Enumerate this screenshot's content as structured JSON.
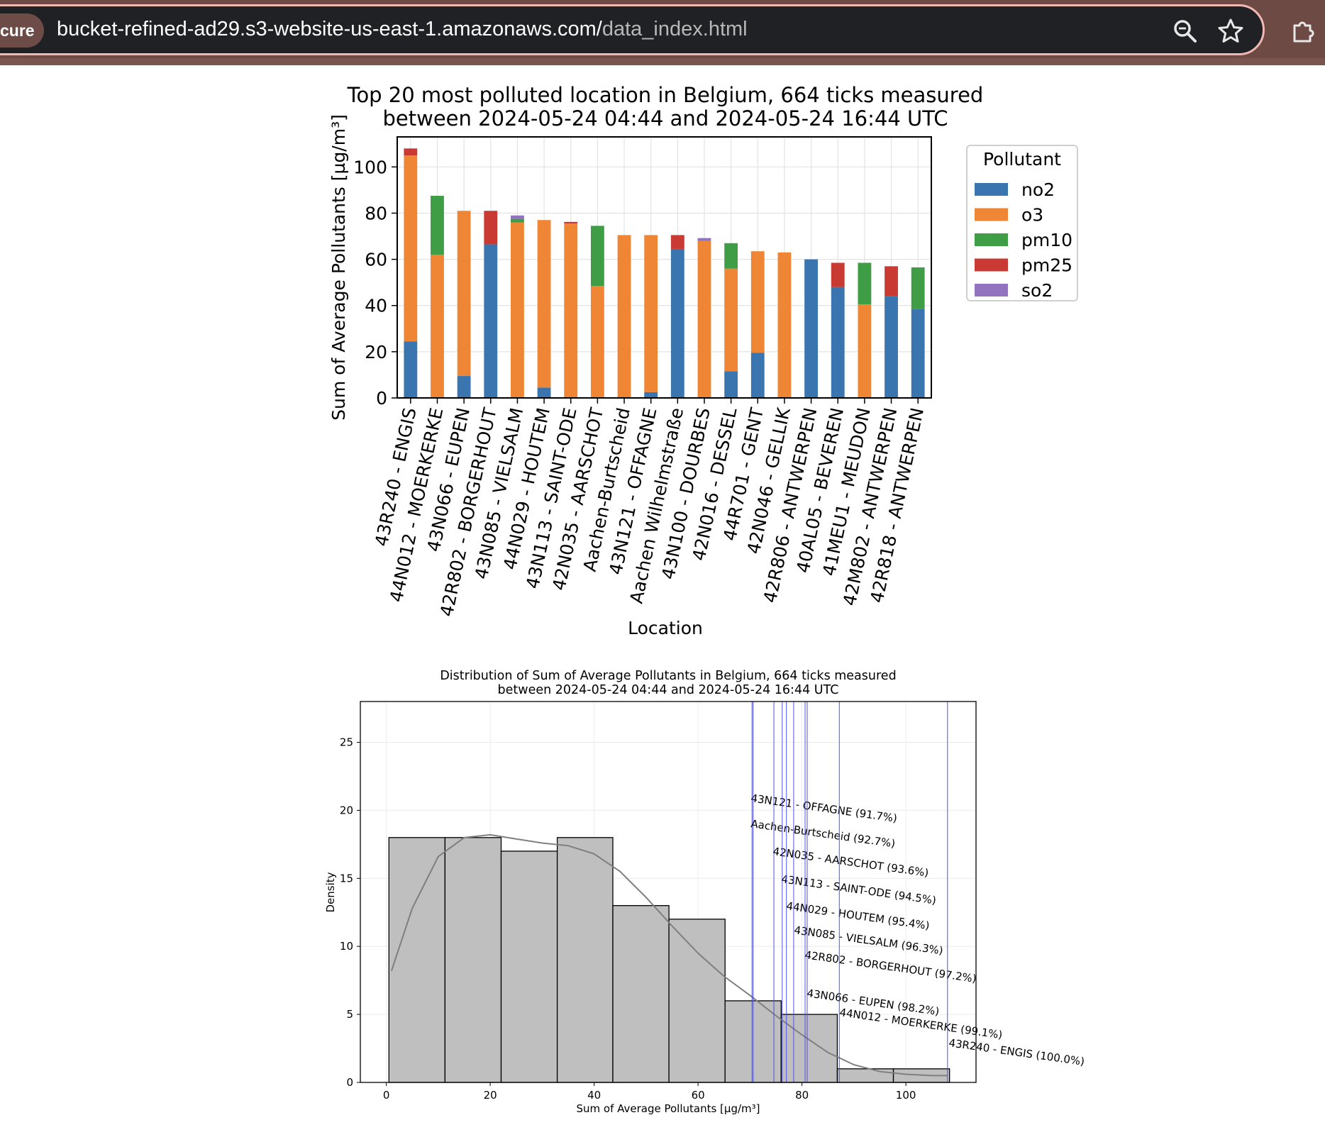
{
  "browser": {
    "security_chip": "cure",
    "url_host": "bucket-refined-ad29.s3-website-us-east-1.amazonaws.com/",
    "url_path": "data_index.html",
    "icons": [
      "zoom-icon",
      "star-icon",
      "extensions-icon"
    ]
  },
  "charts": {
    "bar_title_line1": "Top 20 most polluted location in Belgium, 664 ticks measured",
    "bar_title_line2": "between 2024-05-24 04:44 and 2024-05-24 16:44 UTC",
    "bar_xlabel": "Location",
    "bar_ylabel": "Sum of Average Pollutants [µg/m³]",
    "legend_title": "Pollutant",
    "hist_title_line1": "Distribution of Sum of Average Pollutants in Belgium, 664 ticks measured",
    "hist_title_line2": "between 2024-05-24 04:44 and 2024-05-24 16:44 UTC",
    "hist_xlabel": "Sum of Average Pollutants [µg/m³]",
    "hist_ylabel": "Density"
  },
  "chart_data": [
    {
      "type": "bar",
      "stacked": true,
      "title": "Top 20 most polluted location in Belgium, 664 ticks measured between 2024-05-24 04:44 and 2024-05-24 16:44 UTC",
      "xlabel": "Location",
      "ylabel": "Sum of Average Pollutants [µg/m³]",
      "ylim": [
        0,
        113
      ],
      "yticks": [
        0,
        20,
        40,
        60,
        80,
        100
      ],
      "grid": true,
      "legend": {
        "title": "Pollutant",
        "placement": "outside-right"
      },
      "categories": [
        "43R240 - ENGIS",
        "44N012 - MOERKERKE",
        "43N066 - EUPEN",
        "42R802 - BORGERHOUT",
        "43N085 - VIELSALM",
        "44N029 - HOUTEM",
        "43N113 - SAINT-ODE",
        "42N035 - AARSCHOT",
        "Aachen-Burtscheid",
        "43N121 - OFFAGNE",
        "Aachen Wilhelmstraße",
        "43N100 - DOURBES",
        "42N016 - DESSEL",
        "44R701 - GENT",
        "42N046 - GELLIK",
        "42R806 - ANTWERPEN",
        "40AL05 - BEVEREN",
        "41MEU1 - MEUDON",
        "42M802 - ANTWERPEN",
        "42R818 - ANTWERPEN"
      ],
      "series": [
        {
          "name": "no2",
          "color": "#3a75b0",
          "values": [
            24.5,
            0,
            9.5,
            66.5,
            0,
            4.5,
            0,
            0,
            0,
            2.5,
            64.5,
            0,
            11.5,
            19.5,
            0,
            60,
            48,
            0,
            44,
            38.5
          ]
        },
        {
          "name": "o3",
          "color": "#ef8636",
          "values": [
            80.5,
            62,
            71.5,
            0,
            76,
            72.5,
            75.5,
            48.5,
            70.5,
            68,
            0,
            68,
            44.5,
            44,
            63,
            0,
            0,
            40.5,
            0,
            0
          ]
        },
        {
          "name": "pm10",
          "color": "#3f9d45",
          "values": [
            0,
            25.5,
            0,
            0,
            1.5,
            0,
            0,
            26,
            0,
            0,
            0,
            0,
            11,
            0,
            0,
            0,
            0,
            18,
            0,
            18
          ]
        },
        {
          "name": "pm25",
          "color": "#c83a32",
          "values": [
            3,
            0,
            0,
            14.5,
            0,
            0,
            0.7,
            0,
            0,
            0,
            6,
            0,
            0,
            0,
            0,
            0,
            10.5,
            0,
            13,
            0
          ]
        },
        {
          "name": "so2",
          "color": "#9173bf",
          "values": [
            0,
            0,
            0,
            0,
            1.5,
            0,
            0,
            0,
            0,
            0,
            0,
            1.2,
            0,
            0,
            0,
            0,
            0,
            0,
            0,
            0
          ]
        }
      ]
    },
    {
      "type": "histogram",
      "title": "Distribution of Sum of Average Pollutants in Belgium, 664 ticks measured between 2024-05-24 04:44 and 2024-05-24 16:44 UTC",
      "xlabel": "Sum of Average Pollutants [µg/m³]",
      "ylabel": "Density",
      "xlim": [
        -5,
        113.5
      ],
      "ylim": [
        0,
        28
      ],
      "xticks": [
        0,
        20,
        40,
        60,
        80,
        100
      ],
      "yticks": [
        0,
        5,
        10,
        15,
        20,
        25
      ],
      "grid": true,
      "bins": [
        {
          "x0": 0.5,
          "x1": 11.3,
          "value": 18
        },
        {
          "x0": 11.3,
          "x1": 22.1,
          "value": 18
        },
        {
          "x0": 22.1,
          "x1": 32.9,
          "value": 17
        },
        {
          "x0": 32.9,
          "x1": 43.6,
          "value": 18
        },
        {
          "x0": 43.6,
          "x1": 54.4,
          "value": 13
        },
        {
          "x0": 54.4,
          "x1": 65.2,
          "value": 12
        },
        {
          "x0": 65.2,
          "x1": 76.0,
          "value": 6
        },
        {
          "x0": 76.0,
          "x1": 86.8,
          "value": 5
        },
        {
          "x0": 86.8,
          "x1": 97.6,
          "value": 1
        },
        {
          "x0": 97.6,
          "x1": 108.4,
          "value": 1
        }
      ],
      "kde": {
        "x": [
          1,
          5,
          10,
          15,
          20,
          25,
          30,
          35,
          40,
          45,
          50,
          55,
          60,
          65,
          70,
          75,
          80,
          85,
          90,
          95,
          100,
          105,
          108
        ],
        "y": [
          8.2,
          12.8,
          16.6,
          18.0,
          18.2,
          17.9,
          17.6,
          17.4,
          16.8,
          15.5,
          13.6,
          11.5,
          9.5,
          7.8,
          6.4,
          4.9,
          3.5,
          2.2,
          1.3,
          0.8,
          0.6,
          0.5,
          0.5
        ]
      },
      "markers": [
        {
          "label": "43N121 - OFFAGNE (91.7%)",
          "x": 70.4
        },
        {
          "label": "Aachen-Burtscheid (92.7%)",
          "x": 70.6
        },
        {
          "label": "42N035 - AARSCHOT (93.6%)",
          "x": 74.6
        },
        {
          "label": "43N113 - SAINT-ODE (94.5%)",
          "x": 76.2
        },
        {
          "label": "44N029 - HOUTEM (95.4%)",
          "x": 77.0
        },
        {
          "label": "43N085 - VIELSALM (96.3%)",
          "x": 78.4
        },
        {
          "label": "42R802 - BORGERHOUT (97.2%)",
          "x": 80.6
        },
        {
          "label": "43N066 - EUPEN (98.2%)",
          "x": 81.0
        },
        {
          "label": "44N012 - MOERKERKE (99.1%)",
          "x": 87.2
        },
        {
          "label": "43R240 - ENGIS (100.0%)",
          "x": 108.0
        }
      ]
    }
  ]
}
